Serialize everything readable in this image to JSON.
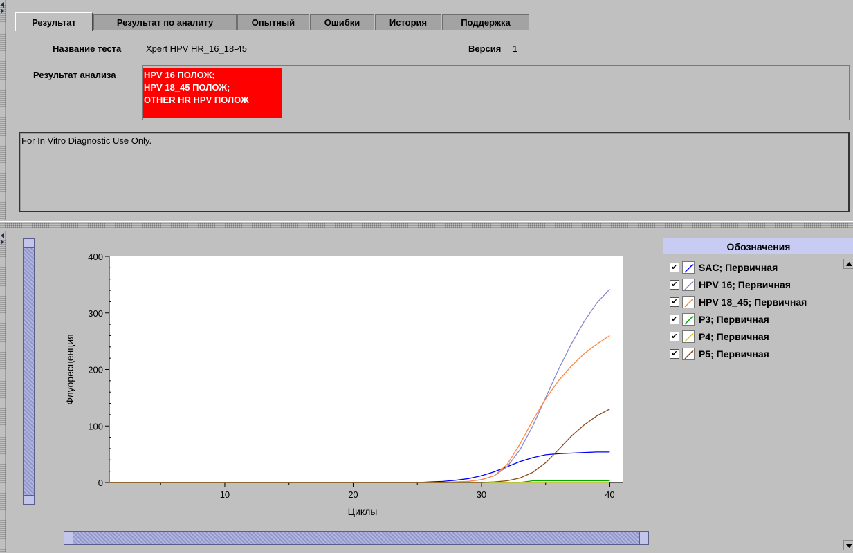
{
  "tabs": [
    {
      "label": "Результат",
      "active": true
    },
    {
      "label": "Результат по аналиту",
      "active": false
    },
    {
      "label": "Опытный",
      "active": false
    },
    {
      "label": "Ошибки",
      "active": false
    },
    {
      "label": "История",
      "active": false
    },
    {
      "label": "Поддержка",
      "active": false
    }
  ],
  "test": {
    "name_label": "Название теста",
    "name_value": "Xpert HPV HR_16_18-45",
    "version_label": "Версия",
    "version_value": "1",
    "result_label": "Результат анализа",
    "result_lines": [
      "HPV 16 ПОЛОЖ;",
      "HPV 18_45 ПОЛОЖ;",
      "OTHER HR HPV ПОЛОЖ"
    ],
    "result_color": "#ff0000"
  },
  "note": "For In Vitro Diagnostic Use Only.",
  "chart_data": {
    "type": "line",
    "xlabel": "Циклы",
    "ylabel": "Флуоресценция",
    "xlim": [
      1,
      41
    ],
    "ylim": [
      0,
      400
    ],
    "xticks": [
      10,
      20,
      30,
      40
    ],
    "yticks": [
      0,
      100,
      200,
      300,
      400
    ],
    "grid": false,
    "series": [
      {
        "name": "SAC; Первичная",
        "color": "#0000ff",
        "x": [
          1,
          25,
          26,
          27,
          28,
          29,
          30,
          31,
          32,
          33,
          34,
          35,
          36,
          37,
          38,
          39,
          40
        ],
        "y": [
          0,
          0,
          1,
          2,
          4,
          7,
          12,
          19,
          28,
          37,
          44,
          49,
          51,
          52,
          53,
          54,
          54
        ]
      },
      {
        "name": "HPV 16; Первичная",
        "color": "#8888cc",
        "x": [
          1,
          27,
          28,
          29,
          30,
          31,
          32,
          33,
          34,
          35,
          36,
          37,
          38,
          39,
          40
        ],
        "y": [
          0,
          0,
          1,
          2,
          5,
          12,
          28,
          58,
          100,
          150,
          200,
          245,
          285,
          318,
          342
        ]
      },
      {
        "name": "HPV 18_45; Первичная",
        "color": "#ff8844",
        "x": [
          1,
          27,
          28,
          29,
          30,
          31,
          32,
          33,
          34,
          35,
          36,
          37,
          38,
          39,
          40
        ],
        "y": [
          0,
          0,
          1,
          2,
          5,
          12,
          32,
          68,
          110,
          148,
          180,
          206,
          228,
          245,
          260
        ]
      },
      {
        "name": "P3; Первичная",
        "color": "#00aa00",
        "x": [
          1,
          33,
          34,
          35,
          40
        ],
        "y": [
          0,
          0,
          3,
          3,
          3
        ]
      },
      {
        "name": "P4; Первичная",
        "color": "#cccc00",
        "x": [
          1,
          40
        ],
        "y": [
          0,
          0
        ]
      },
      {
        "name": "P5; Первичная",
        "color": "#8b4513",
        "x": [
          1,
          30,
          31,
          32,
          33,
          34,
          35,
          36,
          37,
          38,
          39,
          40
        ],
        "y": [
          0,
          0,
          1,
          3,
          8,
          18,
          35,
          58,
          82,
          102,
          118,
          130
        ]
      }
    ]
  },
  "legend": {
    "title": "Обозначения",
    "items": [
      {
        "label": "SAC; Первичная",
        "color": "#0000ff",
        "checked": "✔"
      },
      {
        "label": "HPV 16; Первичная",
        "color": "#8888cc",
        "checked": "✔"
      },
      {
        "label": "HPV 18_45; Первичная",
        "color": "#ff8844",
        "checked": "✔"
      },
      {
        "label": "P3; Первичная",
        "color": "#00aa00",
        "checked": "✔"
      },
      {
        "label": "P4; Первичная",
        "color": "#cccc00",
        "checked": "✔"
      },
      {
        "label": "P5; Первичная",
        "color": "#8b4513",
        "checked": "✔"
      }
    ]
  }
}
